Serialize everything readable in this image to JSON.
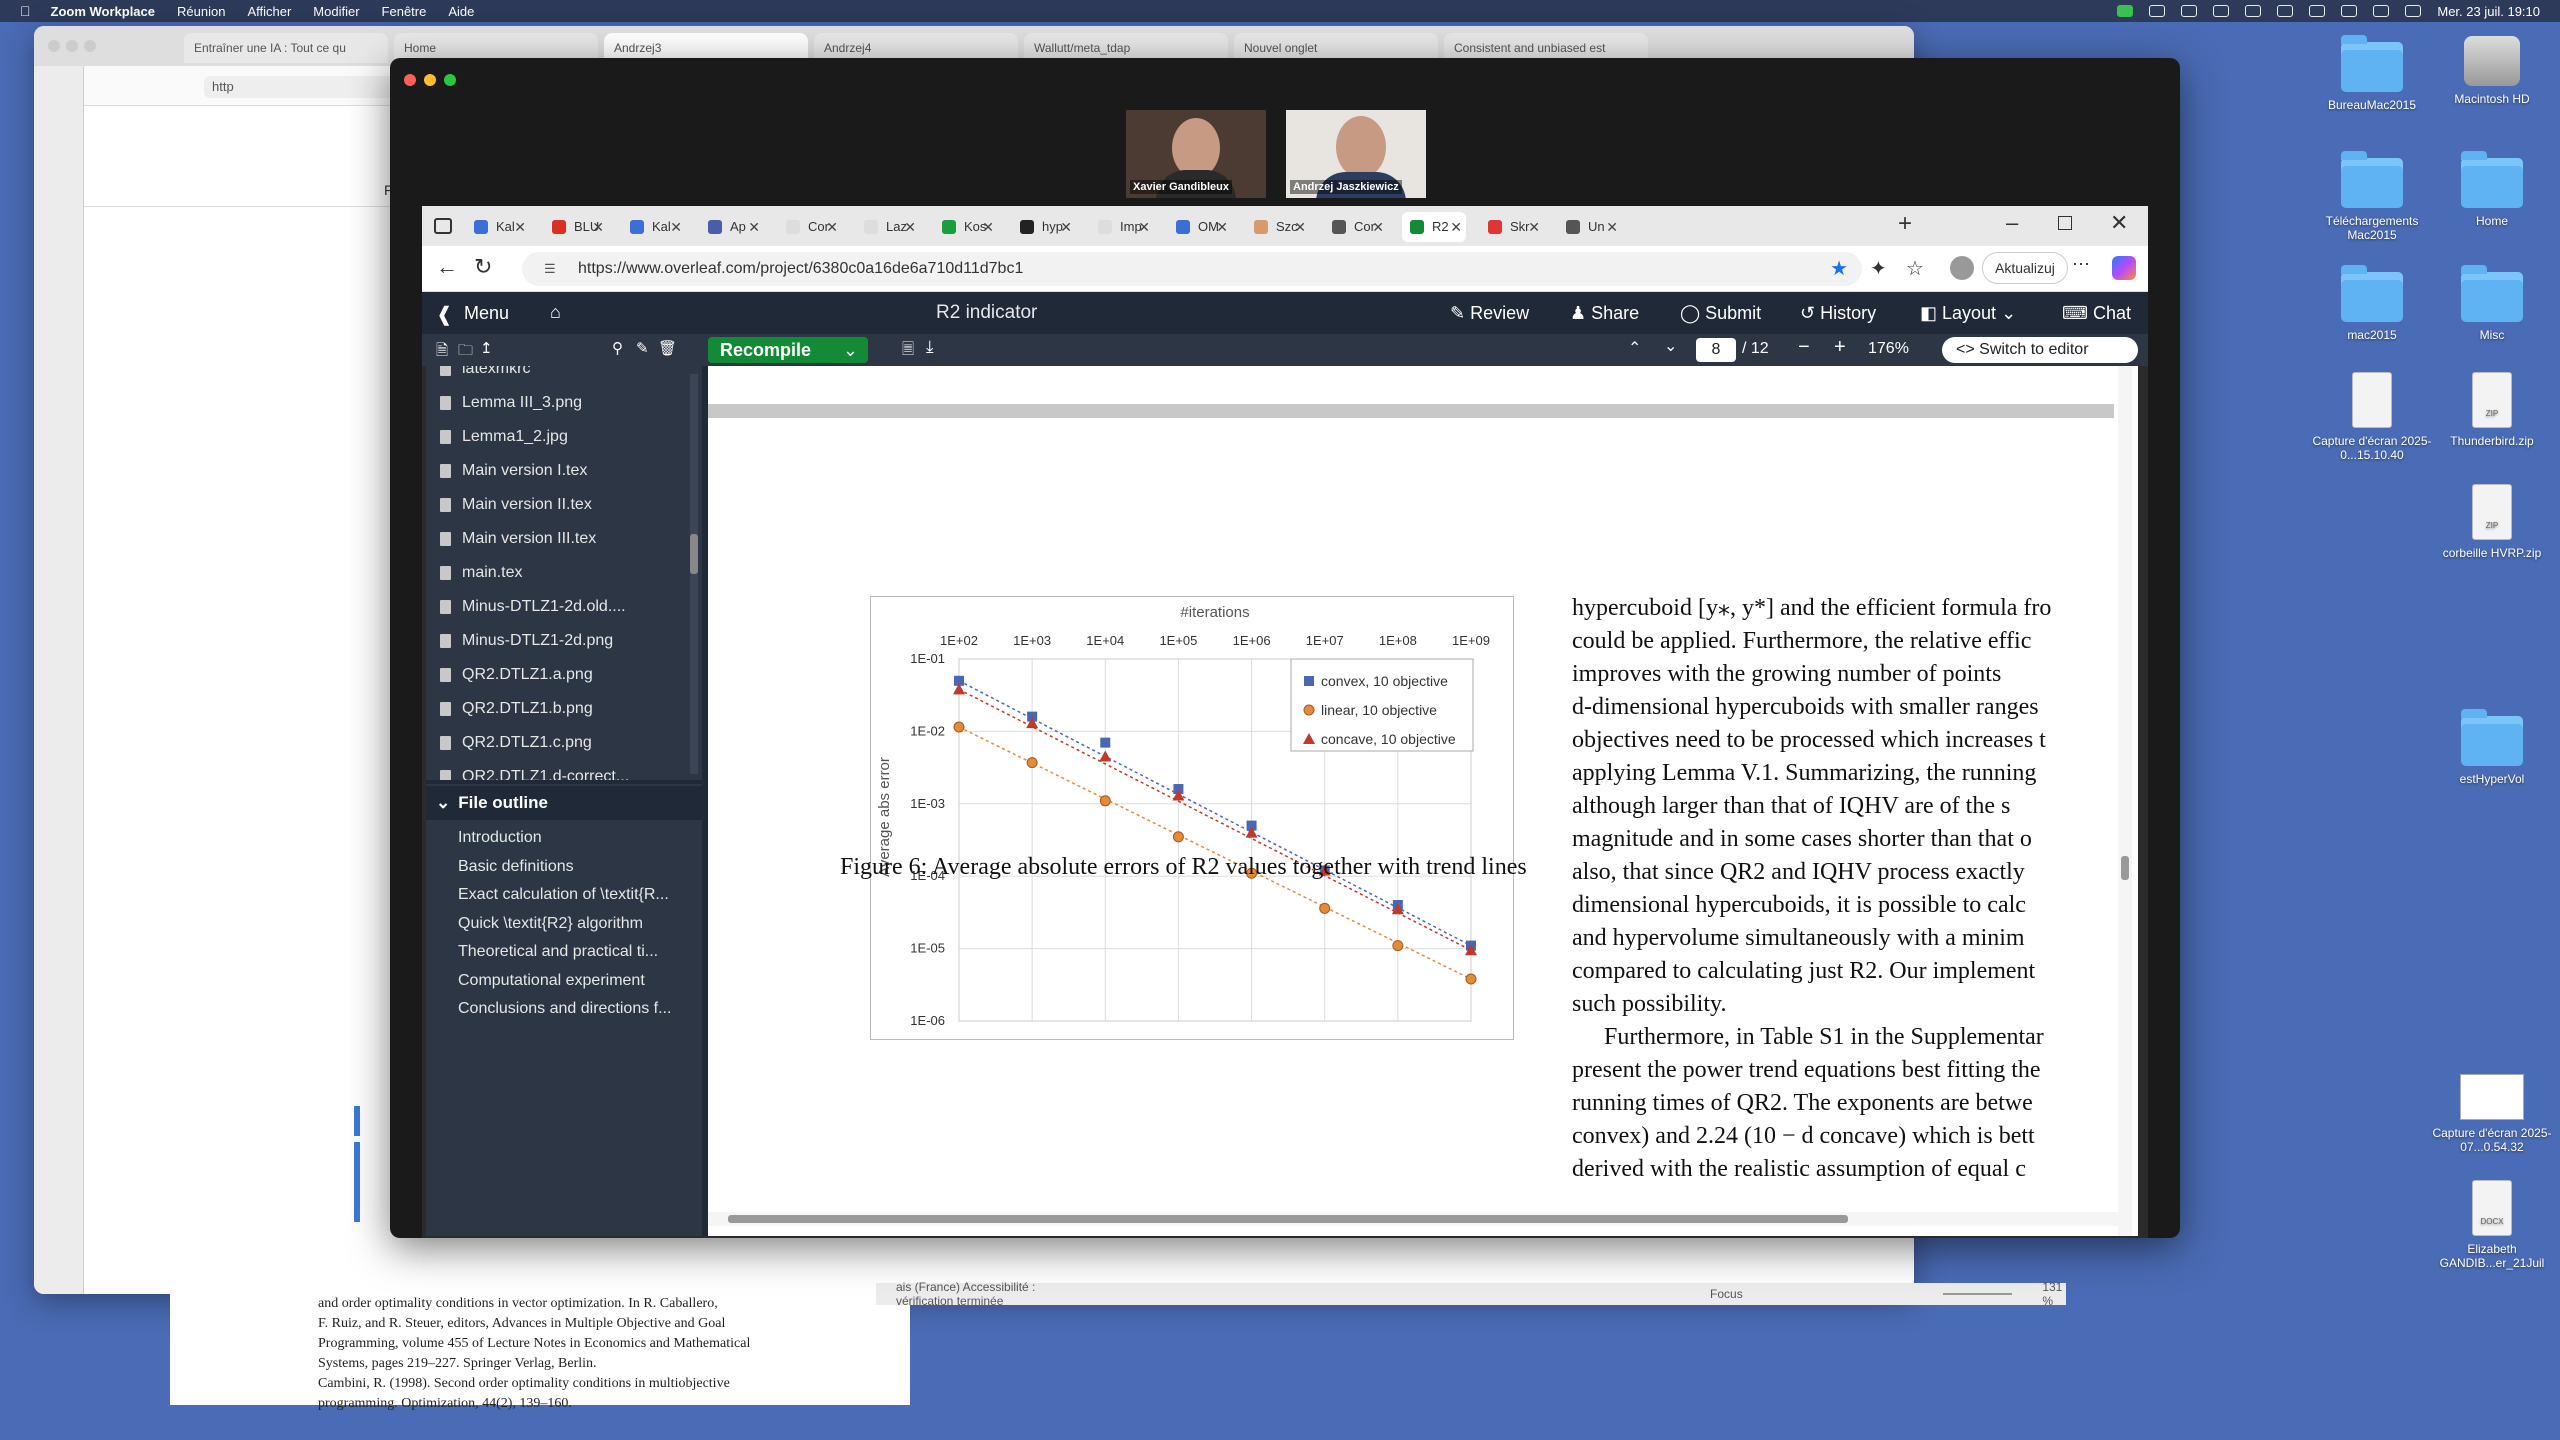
{
  "menubar": {
    "app": "Zoom Workplace",
    "items": [
      "Réunion",
      "Afficher",
      "Modifier",
      "Fenêtre",
      "Aide"
    ],
    "clock": "Mer. 23 juil. 19:10"
  },
  "desktop": {
    "icons": [
      {
        "label": "BureauMac2015",
        "kind": "folder"
      },
      {
        "label": "Macintosh HD",
        "kind": "hdd"
      },
      {
        "label": "TéléchargementsMac2015",
        "kind": "folder"
      },
      {
        "label": "Home",
        "kind": "folder"
      },
      {
        "label": "mac2015",
        "kind": "folder"
      },
      {
        "label": "Misc",
        "kind": "folder"
      },
      {
        "label": "Capture d'écran 2025-0...15.10.40",
        "kind": "doc"
      },
      {
        "label": "Thunderbird.zip",
        "kind": "zip"
      },
      {
        "label": "corbeille HVRP.zip",
        "kind": "zip"
      },
      {
        "label": "estHyperVol",
        "kind": "folder"
      },
      {
        "label": "Capture d'écran 2025-07...0.54.32",
        "kind": "thumb"
      },
      {
        "label": "Elizabeth GANDIB...er_21Juil",
        "kind": "docx"
      }
    ]
  },
  "back_browser": {
    "tabs": [
      "Entraîner une IA : Tout ce qu",
      "Home",
      "Andrzej3",
      "Andrzej4",
      "Wallutt/meta_tdap",
      "Nouvel onglet",
      "Consistent and unbiased est"
    ],
    "url": "http",
    "jupyter_menu": "File",
    "word_lines": [
      "and order optimality conditions in vector optimization. In R. Caballero,",
      "F. Ruiz, and R. Steuer, editors, Advances in Multiple Objective and Goal",
      "Programming, volume 455 of Lecture Notes in Economics and Mathematical",
      "Systems, pages 219–227. Springer Verlag, Berlin.",
      "Cambini, R. (1998). Second order optimality conditions in multiobjective",
      "programming. Optimization, 44(2), 139–160."
    ],
    "status_text": "ais (France)   Accessibilité : vérification terminée",
    "focus_label": "Focus",
    "zoom": "131 %"
  },
  "zoom": {
    "participants": [
      "Xavier Gandibleux",
      "Andrzej Jaszkiewicz"
    ]
  },
  "edge": {
    "tabs": [
      "Kal",
      "BLU",
      "Kal",
      "Ap",
      "Cor",
      "Laz",
      "Kos",
      "hyp",
      "Imp",
      "OM",
      "Szc",
      "Cor",
      "R2",
      "Skr",
      "Un"
    ],
    "url": "https://www.overleaf.com/project/6380c0a16de6a710d11d7bc1",
    "update_label": "Aktualizuj",
    "new_tab": "+"
  },
  "overleaf": {
    "menu_label": "Menu",
    "project_title": "R2 indicator",
    "actions": [
      "Review",
      "Share",
      "Submit",
      "History",
      "Layout",
      "Chat"
    ],
    "recompile": "Recompile",
    "page_current": "8",
    "page_total": "/ 12",
    "zoom": "176%",
    "switch_editor": "Switch to editor",
    "files": [
      "latexmkrc",
      "Lemma III_3.png",
      "Lemma1_2.jpg",
      "Main version I.tex",
      "Main version II.tex",
      "Main version III.tex",
      "main.tex",
      "Minus-DTLZ1-2d.old....",
      "Minus-DTLZ1-2d.png",
      "QR2.DTLZ1.a.png",
      "QR2.DTLZ1.b.png",
      "QR2.DTLZ1.c.png",
      "QR2.DTLZ1.d-correct..."
    ],
    "outline_title": "File outline",
    "outline": [
      "Introduction",
      "Basic definitions",
      "Exact calculation of \\textit{R...",
      "Quick \\textit{R2} algorithm",
      "Theoretical and practical ti...",
      "Computational experiment",
      "Conclusions and directions f..."
    ]
  },
  "pdf": {
    "caption": "Figure 6: Average absolute errors of R2 values together with trend lines",
    "right_lines": [
      "hypercuboid [y⁎, y*] and the efficient formula fro",
      "could be applied. Furthermore, the relative effic",
      "improves with the growing number of points",
      "d-dimensional hypercuboids with smaller ranges",
      "objectives need to be processed which increases t",
      "applying Lemma V.1. Summarizing, the running",
      "although larger than that of IQHV are of the s",
      "magnitude and in some cases shorter than that o",
      "also, that since QR2 and IQHV process exactly",
      "dimensional hypercuboids, it is possible to calc",
      "and hypervolume simultaneously with a minim",
      "compared to calculating just R2. Our implement",
      "such possibility.",
      "Furthermore, in Table S1 in the Supplementar",
      "present the power trend equations best fitting the",
      "running times of QR2. The exponents are betwe",
      "convex) and 2.24 (10 − d concave) which is bett",
      "derived with the realistic assumption of equal c"
    ]
  },
  "chart_data": {
    "type": "scatter",
    "title": "#iterations",
    "xlabel": "#iterations",
    "ylabel": "Average abs error",
    "x_scale": "log",
    "y_scale": "log",
    "x_ticks": [
      "1E+02",
      "1E+03",
      "1E+04",
      "1E+05",
      "1E+06",
      "1E+07",
      "1E+08",
      "1E+09"
    ],
    "y_ticks": [
      "1E-01",
      "1E-02",
      "1E-03",
      "1E-04",
      "1E-05",
      "1E-06"
    ],
    "xlim": [
      100,
      1000000000
    ],
    "ylim": [
      1e-06,
      0.1
    ],
    "grid": true,
    "legend_position": "top-right",
    "x": [
      100,
      1000,
      10000,
      100000,
      1000000,
      10000000,
      100000000,
      1000000000
    ],
    "series": [
      {
        "name": "convex, 10 objective",
        "color": "#4a67b4",
        "marker": "square",
        "values": [
          0.05,
          0.016,
          0.007,
          0.0016,
          0.0005,
          0.00012,
          4e-05,
          1.1e-05
        ]
      },
      {
        "name": "linear, 10 objective",
        "color": "#e38a3b",
        "marker": "circle",
        "values": [
          0.0115,
          0.0037,
          0.0011,
          0.00035,
          0.00011,
          3.6e-05,
          1.1e-05,
          3.8e-06
        ]
      },
      {
        "name": "concave, 10 objective",
        "color": "#c0392b",
        "marker": "triangle",
        "values": [
          0.038,
          0.013,
          0.0045,
          0.0013,
          0.0004,
          0.00012,
          3.5e-05,
          9.5e-06
        ]
      }
    ]
  }
}
